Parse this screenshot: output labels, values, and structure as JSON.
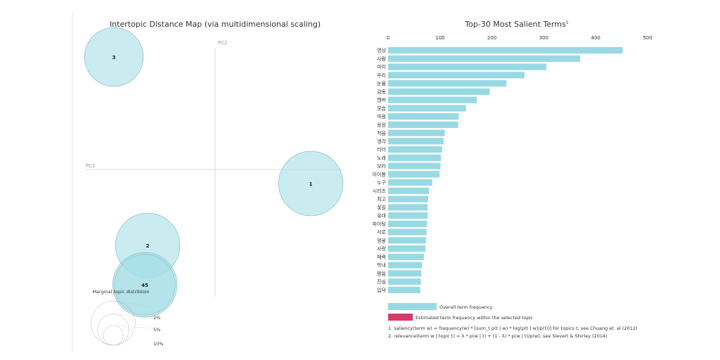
{
  "left_panel": {
    "title": "Intertopic Distance Map (via multidimensional scaling)",
    "pc1_label": "PC1",
    "pc2_label": "PC2",
    "marginal_label": "Marginal topic distribtion",
    "size_legend": [
      "2%",
      "5%",
      "10%"
    ]
  },
  "right_panel": {
    "title": "Top-30 Most Salient Terms",
    "title_sup": "1",
    "legend_overall": "Overall term frequency",
    "legend_estimated": "Estimated term frequency within the selected topic",
    "footnote_1": "1. saliency(term w) = frequency(w) * [sum_t p(t | w) * log(p(t | w)/p(t))] for topics t; see Chuang et. al (2012)",
    "footnote_2": "2. relevance(term w | topic t) = λ * p(w | t) + (1 - λ) * p(w | t)/p(w); see Sievert & Shirley (2014)"
  },
  "colors": {
    "bar": "#99d9e4",
    "estimated": "#d63a68",
    "circle_fill": "#a6dde6",
    "circle_stroke": "#7fb8c4",
    "axis_line": "#dddddd"
  },
  "chart_data": [
    {
      "type": "scatter",
      "title": "Intertopic Distance Map (via multidimensional scaling)",
      "xlabel": "PC1",
      "ylabel": "PC2",
      "points": [
        {
          "label": "1",
          "x": 0.34,
          "y": -0.05,
          "size_pct": 9.0
        },
        {
          "label": "2",
          "x": -0.24,
          "y": -0.27,
          "size_pct": 9.0
        },
        {
          "label": "3",
          "x": -0.36,
          "y": 0.4,
          "size_pct": 7.5
        },
        {
          "label": "4",
          "x": -0.25,
          "y": -0.41,
          "size_pct": 8.0
        },
        {
          "label": "5",
          "x": -0.25,
          "y": -0.41,
          "size_pct": 9.0
        }
      ],
      "xlim": [
        -0.4,
        0.4
      ],
      "ylim": [
        -0.45,
        0.45
      ],
      "size_legend_pct": [
        2,
        5,
        10
      ]
    },
    {
      "type": "bar",
      "orientation": "horizontal",
      "title": "Top-30 Most Salient Terms",
      "categories": [
        "영상",
        "사람",
        "아미",
        "우리",
        "눈물",
        "감동",
        "멤버",
        "모습",
        "마음",
        "응원",
        "처음",
        "생각",
        "리더",
        "노래",
        "보라",
        "아이들",
        "누구",
        "시리즈",
        "최고",
        "꽃길",
        "유대",
        "파이팅",
        "서로",
        "얼굴",
        "사랑",
        "매력",
        "막내",
        "말씀",
        "진심",
        "입덕"
      ],
      "series": [
        {
          "name": "Overall term frequency",
          "values": [
            452,
            370,
            305,
            263,
            228,
            196,
            171,
            150,
            136,
            135,
            109,
            107,
            104,
            102,
            101,
            99,
            85,
            79,
            77,
            76,
            76,
            75,
            74,
            73,
            72,
            69,
            65,
            64,
            63,
            62
          ]
        }
      ],
      "xlim": [
        0,
        500
      ],
      "xticks": [
        0,
        100,
        200,
        300,
        400,
        500
      ]
    }
  ]
}
